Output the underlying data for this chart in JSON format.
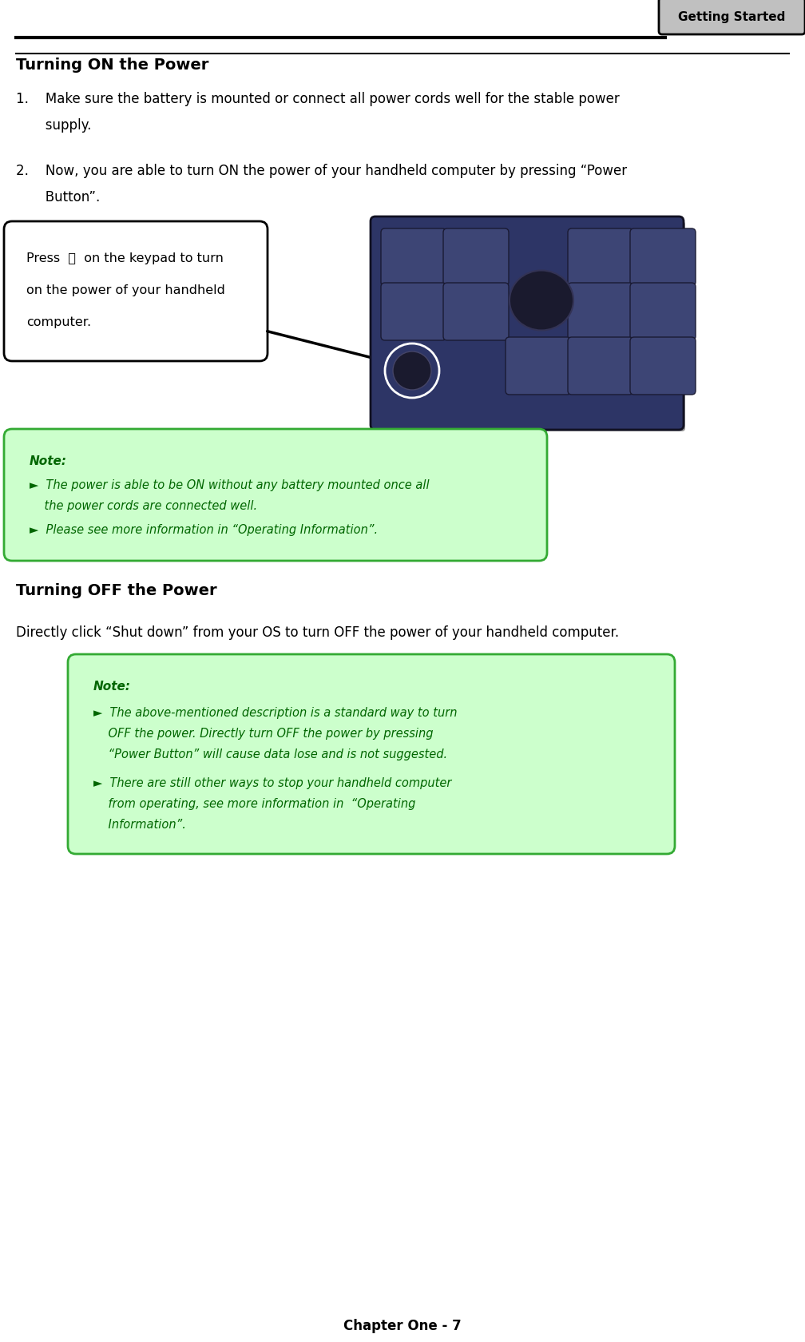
{
  "page_width": 10.08,
  "page_height": 16.81,
  "dpi": 100,
  "bg_color": "#ffffff",
  "header_tab_text": "Getting Started",
  "header_tab_bg": "#c0c0c0",
  "turning_on_title": "Turning ON the Power",
  "item1_line1": "1.    Make sure the battery is mounted or connect all power cords well for the stable power",
  "item1_line2": "       supply.",
  "item2_line1": "2.    Now, you are able to turn ON the power of your handheld computer by pressing “Power",
  "item2_line2": "       Button”.",
  "callout_line1": "Press  ⏻  on the keypad to turn",
  "callout_line2": "on the power of your handheld",
  "callout_line3": "computer.",
  "note1_title": "Note:",
  "note1_bullet1_line1": "►  The power is able to be ON without any battery mounted once all",
  "note1_bullet1_line2": "    the power cords are connected well.",
  "note1_bullet2": "►  Please see more information in “Operating Information”.",
  "turning_off_title": "Turning OFF the Power",
  "turning_off_body_prefix": "Directly click “",
  "turning_off_body_bold": "Shut down",
  "turning_off_body_suffix": "” from your OS to turn OFF the power of your handheld computer.",
  "note2_title": "Note:",
  "note2_bullet1_line1": "►  The above-mentioned description is a standard way to turn",
  "note2_bullet1_line2": "    OFF the power. Directly turn OFF the power by pressing",
  "note2_bullet1_line3": "    “Power Button” will cause data lose and is not suggested.",
  "note2_bullet2_line1": "►  There are still other ways to stop your handheld computer",
  "note2_bullet2_line2": "    from operating, see more information in  “Operating",
  "note2_bullet2_line3": "    Information”.",
  "footer_text": "Chapter One - 7",
  "note1_bg": "#ccffcc",
  "note2_bg": "#ccffcc",
  "note_border": "#33aa33",
  "note_text_color": "#006600"
}
